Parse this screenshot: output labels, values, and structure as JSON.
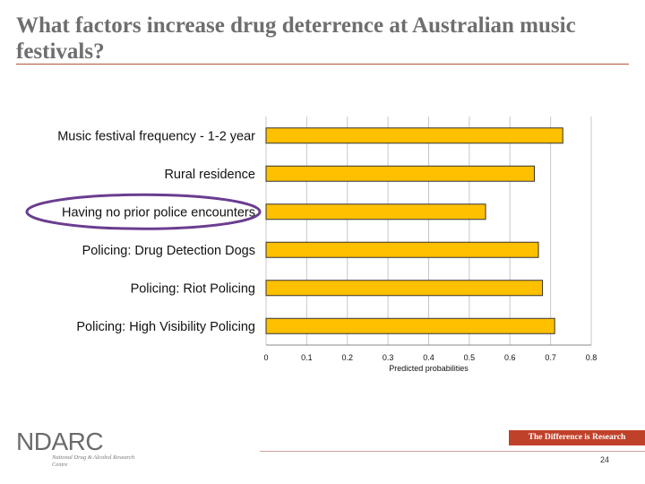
{
  "slide": {
    "title": "What factors increase drug deterrence at Australian music festivals?",
    "page_number": "24",
    "tagline": "The Difference is Research"
  },
  "logo": {
    "wordmark": "NDARC",
    "subtitle": "National Drug & Alcohol Research Centre"
  },
  "colors": {
    "bar_fill": "#ffc000",
    "bar_stroke": "#333333",
    "highlight_ellipse": "#6a3d8f",
    "accent": "#c0412a"
  },
  "chart_data": {
    "type": "bar",
    "orientation": "horizontal",
    "categories": [
      "Music festival frequency - 1-2 year",
      "Rural residence",
      "Having no prior police encounters",
      "Policing: Drug Detection Dogs",
      "Policing: Riot Policing",
      "Policing: High Visibility Policing"
    ],
    "values": [
      0.73,
      0.66,
      0.54,
      0.67,
      0.68,
      0.71
    ],
    "xlabel": "Predicted probabilities",
    "ylabel": "",
    "xlim": [
      0,
      0.8
    ],
    "xticks": [
      "0",
      "0.1",
      "0.2",
      "0.3",
      "0.4",
      "0.5",
      "0.6",
      "0.7",
      "0.8"
    ],
    "grid": true,
    "highlighted_category": "Having no prior police encounters"
  }
}
